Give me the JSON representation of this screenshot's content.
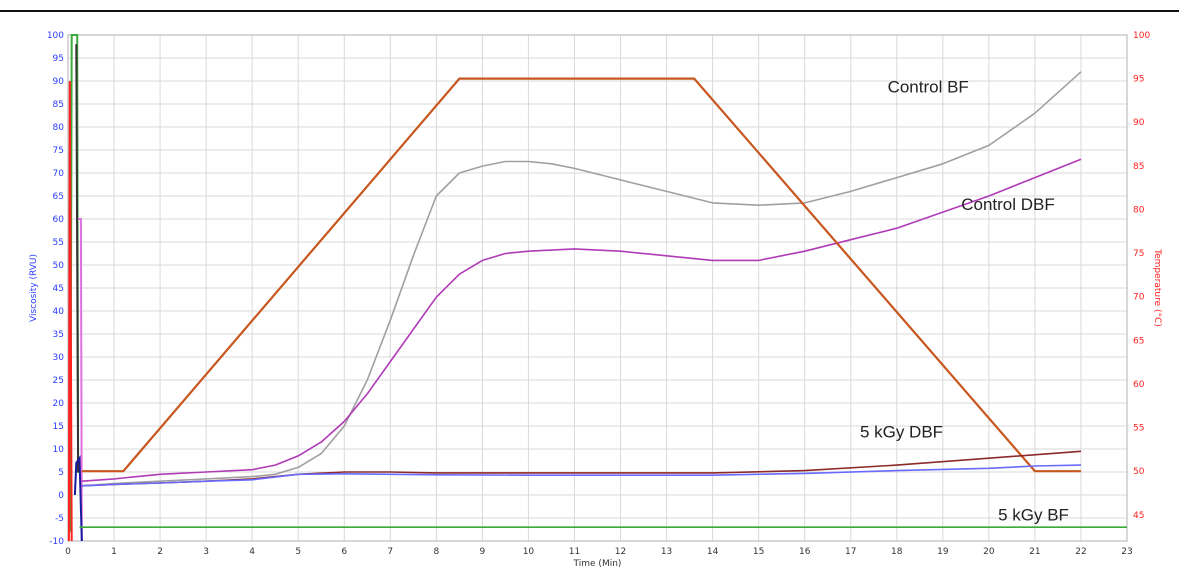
{
  "chart_data": {
    "type": "line",
    "title": "",
    "xlabel": "Time (Min)",
    "ylabel_left": "Viscosity (RVU)",
    "ylabel_right": "Temperature (°C)",
    "xlim": [
      0,
      23
    ],
    "ylim_left": [
      -10,
      100
    ],
    "ylim_right": [
      42,
      100
    ],
    "x_ticks": [
      0,
      1,
      2,
      3,
      4,
      5,
      6,
      7,
      8,
      9,
      10,
      11,
      12,
      13,
      14,
      15,
      16,
      17,
      18,
      19,
      20,
      21,
      22,
      23
    ],
    "y_left_ticks": [
      -10,
      -5,
      0,
      5,
      10,
      15,
      20,
      25,
      30,
      35,
      40,
      45,
      50,
      55,
      60,
      65,
      70,
      75,
      80,
      85,
      90,
      95,
      100
    ],
    "y_right_ticks": [
      45,
      50,
      55,
      60,
      65,
      70,
      75,
      80,
      85,
      90,
      95,
      100
    ],
    "colors": {
      "left_axis": "#2a3cff",
      "right_axis": "#ff2020",
      "grid": "#d9d9d9",
      "control_bf": "#a0a0a0",
      "control_dbf": "#b03ab8",
      "temperature": "#c8561f",
      "kgy_dbf": "#8c2a2a",
      "kgy_bf": "#6a6aff",
      "green": "#3aaa3a"
    },
    "series": [
      {
        "name": "Control BF",
        "axis": "left",
        "color_key": "control_bf",
        "x": [
          0.3,
          1,
          2,
          3,
          4,
          4.5,
          5,
          5.5,
          6,
          6.5,
          7,
          7.5,
          8,
          8.5,
          9,
          9.5,
          10,
          10.5,
          11,
          12,
          13,
          14,
          15,
          16,
          17,
          18,
          19,
          20,
          21,
          22
        ],
        "y": [
          2,
          2.5,
          3,
          3.5,
          4,
          4.5,
          6,
          9,
          15,
          25,
          38,
          52,
          65,
          70,
          71.5,
          72.5,
          72.5,
          72,
          71,
          68.5,
          66,
          63.5,
          63,
          63.5,
          66,
          69,
          72,
          76,
          83,
          92
        ]
      },
      {
        "name": "Control DBF",
        "axis": "left",
        "color_key": "control_dbf",
        "x": [
          0.3,
          1,
          2,
          3,
          4,
          4.5,
          5,
          5.5,
          6,
          6.5,
          7,
          7.5,
          8,
          8.5,
          9,
          9.5,
          10,
          11,
          12,
          13,
          14,
          15,
          16,
          17,
          18,
          19,
          20,
          21,
          22
        ],
        "y": [
          3,
          3.5,
          4.5,
          5,
          5.5,
          6.5,
          8.5,
          11.5,
          16,
          22,
          29,
          36,
          43,
          48,
          51,
          52.5,
          53,
          53.5,
          53,
          52,
          51,
          51,
          53,
          55.5,
          58,
          61.5,
          65,
          69,
          73
        ]
      },
      {
        "name": "",
        "axis": "right",
        "color_key": "temperature",
        "x": [
          0.3,
          1,
          1.2,
          8.5,
          13.6,
          21,
          22
        ],
        "y": [
          50,
          50,
          50,
          95,
          95,
          50,
          50
        ]
      },
      {
        "name": "5 kGy DBF",
        "axis": "left",
        "color_key": "kgy_dbf",
        "x": [
          0.3,
          1,
          2,
          3,
          4,
          5,
          6,
          7,
          8,
          10,
          12,
          14,
          16,
          18,
          20,
          22
        ],
        "y": [
          2,
          2.3,
          2.6,
          3,
          3.5,
          4.5,
          5,
          5,
          4.8,
          4.8,
          4.8,
          4.8,
          5.3,
          6.5,
          8,
          9.5
        ]
      },
      {
        "name": "5 kGy BF",
        "axis": "left",
        "color_key": "kgy_bf",
        "x": [
          0.3,
          1,
          2,
          3,
          4,
          5,
          6,
          8,
          10,
          12,
          14,
          16,
          18,
          20,
          21,
          22
        ],
        "y": [
          2,
          2.3,
          2.6,
          3,
          3.3,
          4.5,
          4.6,
          4.4,
          4.3,
          4.3,
          4.3,
          4.7,
          5.3,
          5.8,
          6.3,
          6.5
        ]
      },
      {
        "name": "",
        "axis": "left",
        "color_key": "green",
        "x": [
          0.25,
          0.3,
          23
        ],
        "y": [
          -7,
          -7,
          -7
        ]
      }
    ],
    "annotations": [
      {
        "text": "Control  BF",
        "x": 17.8,
        "y": 87.5
      },
      {
        "text": "Control  DBF",
        "x": 19.4,
        "y": 62
      },
      {
        "text": "5 kGy DBF",
        "x": 17.2,
        "y": 12.5
      },
      {
        "text": "5 kGy  BF",
        "x": 20.2,
        "y": -5.5
      }
    ]
  }
}
